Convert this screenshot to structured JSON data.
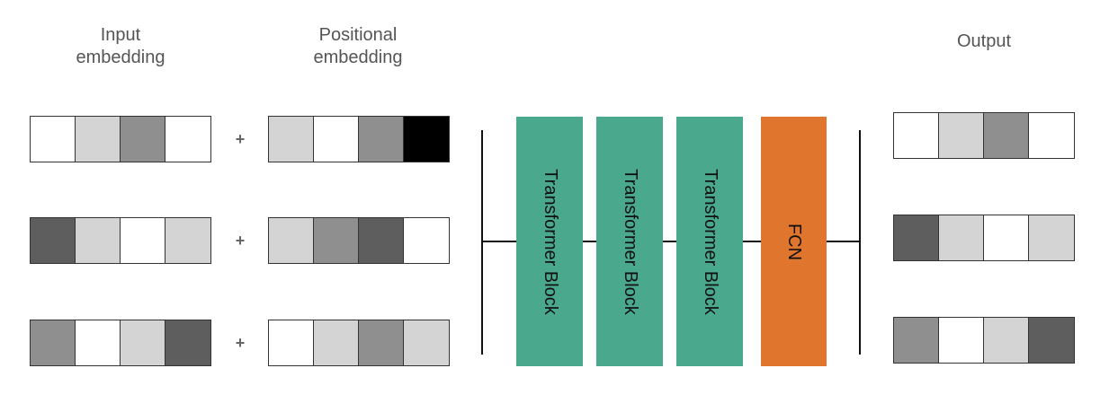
{
  "labels": {
    "input": "Input\nembedding",
    "positional": "Positional\nembedding",
    "output": "Output"
  },
  "plus_symbol": "+",
  "colors": {
    "white": "#ffffff",
    "light": "#d4d4d4",
    "mid": "#8f8f8f",
    "dark": "#5e5e5e",
    "black": "#000000",
    "transformer": "#4aa98c",
    "fcn": "#e0762d"
  },
  "input_embeddings": [
    [
      "white",
      "light",
      "mid",
      "white"
    ],
    [
      "dark",
      "light",
      "white",
      "light"
    ],
    [
      "mid",
      "white",
      "light",
      "dark"
    ]
  ],
  "positional_embeddings": [
    [
      "light",
      "white",
      "mid",
      "black"
    ],
    [
      "light",
      "mid",
      "dark",
      "white"
    ],
    [
      "white",
      "light",
      "mid",
      "light"
    ]
  ],
  "output_embeddings": [
    [
      "white",
      "light",
      "mid",
      "white"
    ],
    [
      "dark",
      "light",
      "white",
      "light"
    ],
    [
      "mid",
      "white",
      "light",
      "dark"
    ]
  ],
  "blocks": [
    {
      "label": "Transformer Block",
      "color": "transformer"
    },
    {
      "label": "Transformer Block",
      "color": "transformer"
    },
    {
      "label": "Transformer Block",
      "color": "transformer"
    },
    {
      "label": "FCN",
      "color": "fcn"
    }
  ]
}
